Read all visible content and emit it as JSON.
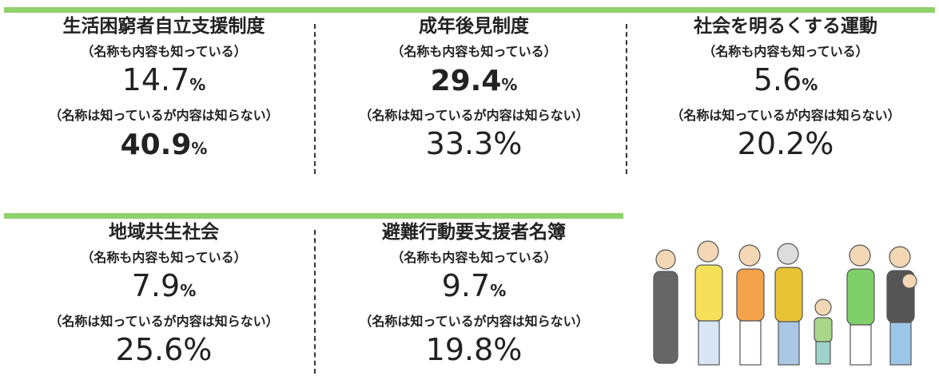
{
  "panels": [
    {
      "title": "生活困窮者自立支援制度",
      "items": [
        {
          "label": "（名称も内容も知っている）",
          "value": "14.7",
          "unit": "%",
          "bold": false,
          "unit_small": true
        },
        {
          "label": "（名称は知っているが内容は知らない）",
          "value": "40.9",
          "unit": "%",
          "bold": true,
          "unit_small": true
        }
      ]
    },
    {
      "title": "成年後見制度",
      "items": [
        {
          "label": "（名称も内容も知っている）",
          "value": "29.4",
          "unit": "%",
          "bold": true,
          "unit_small": true
        },
        {
          "label": "（名称は知っているが内容は知らない）",
          "value": "33.3",
          "unit": "%",
          "bold": false,
          "unit_small": false
        }
      ]
    },
    {
      "title": "社会を明るくする運動",
      "items": [
        {
          "label": "（名称も内容も知っている）",
          "value": "5.6",
          "unit": "%",
          "bold": false,
          "unit_small": true
        },
        {
          "label": "（名称は知っているが内容は知らない）",
          "value": "20.2",
          "unit": "%",
          "bold": false,
          "unit_small": false
        }
      ]
    },
    {
      "title": "地域共生社会",
      "items": [
        {
          "label": "（名称も内容も知っている）",
          "value": "7.9",
          "unit": "%",
          "bold": false,
          "unit_small": true
        },
        {
          "label": "（名称は知っているが内容は知らない）",
          "value": "25.6",
          "unit": "%",
          "bold": false,
          "unit_small": false
        }
      ]
    },
    {
      "title": "避難行動要支援者名簿",
      "items": [
        {
          "label": "（名称も内容も知っている）",
          "value": "9.7",
          "unit": "%",
          "bold": false,
          "unit_small": true
        },
        {
          "label": "（名称は知っているが内容は知らない）",
          "value": "19.8",
          "unit": "%",
          "bold": false,
          "unit_small": false
        }
      ]
    }
  ]
}
